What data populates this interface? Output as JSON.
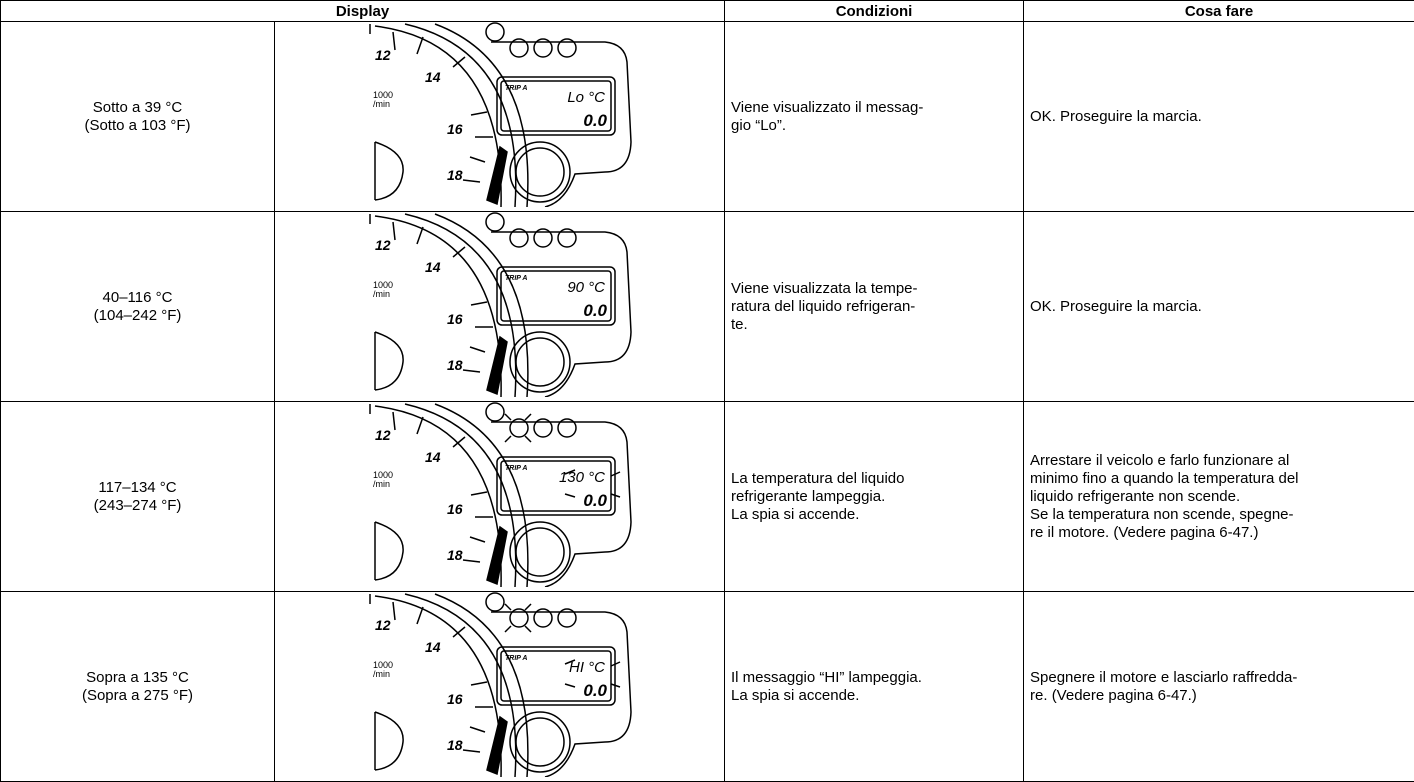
{
  "header": {
    "display": "Display",
    "conditions": "Condizioni",
    "action": "Cosa fare"
  },
  "gauge": {
    "unit": [
      "1000",
      "/min"
    ],
    "scale": [
      "12",
      "14",
      "16",
      "18"
    ],
    "trip": "TRIP A"
  },
  "rows": [
    {
      "temp": [
        "Sotto a 39 °C",
        "(Sotto a 103 °F)"
      ],
      "display": {
        "lcd": "Lo °C",
        "odo": "0.0",
        "flash": false
      },
      "conditions": [
        "Viene visualizzato il messag-",
        "gio “Lo”."
      ],
      "action": [
        "OK. Proseguire la marcia."
      ]
    },
    {
      "temp": [
        "40–116 °C",
        "(104–242 °F)"
      ],
      "display": {
        "lcd": "90 °C",
        "odo": "0.0",
        "flash": false
      },
      "conditions": [
        "Viene visualizzata la tempe-",
        "ratura del liquido refrigeran-",
        "te."
      ],
      "action": [
        "OK. Proseguire la marcia."
      ]
    },
    {
      "temp": [
        "117–134 °C",
        "(243–274 °F)"
      ],
      "display": {
        "lcd": "130 °C",
        "odo": "0.0",
        "flash": true
      },
      "conditions": [
        "La temperatura del liquido",
        "refrigerante lampeggia.",
        "La spia si accende."
      ],
      "action": [
        "Arrestare il veicolo e farlo funzionare al",
        "minimo fino a quando la temperatura del",
        "liquido refrigerante non scende.",
        "Se la temperatura non scende, spegne-",
        "re il motore. (Vedere pagina 6-47.)"
      ]
    },
    {
      "temp": [
        "Sopra a 135 °C",
        "(Sopra a 275 °F)"
      ],
      "display": {
        "lcd": "HI °C",
        "odo": "0.0",
        "flash": true
      },
      "conditions": [
        "Il messaggio “HI” lampeggia.",
        "La spia si accende."
      ],
      "action": [
        "Spegnere il motore e lasciarlo raffredda-",
        "re. (Vedere pagina 6-47.)"
      ]
    }
  ]
}
